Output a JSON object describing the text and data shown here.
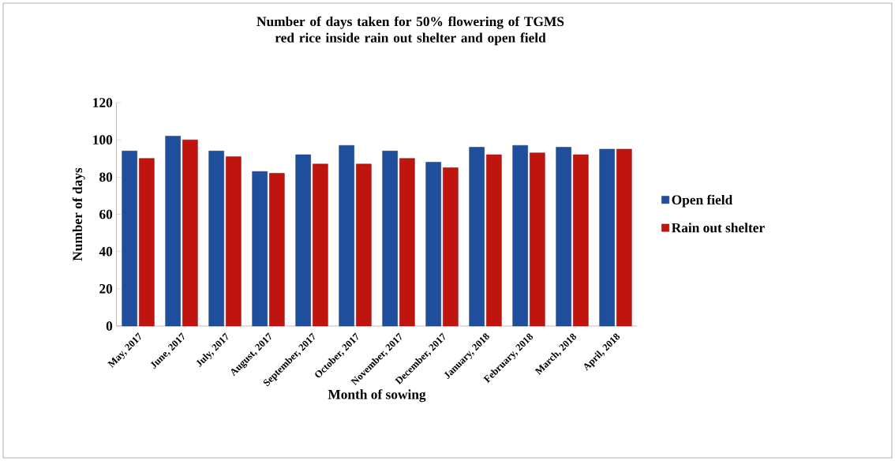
{
  "chart_data": {
    "type": "bar",
    "title": "Number of days taken for 50% flowering of TGMS red rice inside rain out shelter and open field",
    "xlabel": "Month of sowing",
    "ylabel": "Number of days",
    "categories": [
      "May, 2017",
      "June, 2017",
      "July, 2017",
      "August, 2017",
      "September, 2017",
      "October, 2017",
      "November, 2017",
      "December, 2017",
      "January, 2018",
      "February, 2018",
      "March, 2018",
      "April, 2018"
    ],
    "series": [
      {
        "name": "Open field",
        "color": "#1f4e9c",
        "values": [
          94,
          102,
          94,
          83,
          92,
          97,
          94,
          88,
          96,
          97,
          96,
          95
        ]
      },
      {
        "name": "Rain out shelter",
        "color": "#c0140f",
        "values": [
          90,
          100,
          91,
          82,
          87,
          87,
          90,
          85,
          92,
          93,
          92,
          95
        ]
      }
    ],
    "ylim": [
      0,
      120
    ],
    "yticks": [
      0,
      20,
      40,
      60,
      80,
      100,
      120
    ],
    "legend": "right"
  }
}
